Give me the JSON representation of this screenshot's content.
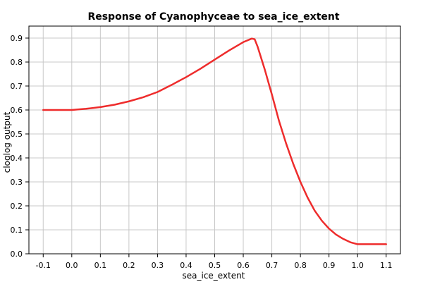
{
  "chart_data": {
    "type": "line",
    "title": "Response of Cyanophyceae to sea_ice_extent",
    "xlabel": "sea_ice_extent",
    "ylabel": "cloglog output",
    "xlim": [
      -0.15,
      1.15
    ],
    "ylim": [
      0.0,
      0.95
    ],
    "x_ticks": [
      -0.1,
      0.0,
      0.1,
      0.2,
      0.3,
      0.4,
      0.5,
      0.6,
      0.7,
      0.8,
      0.9,
      1.0,
      1.1
    ],
    "x_tick_labels": [
      "-0.1",
      "0.0",
      "0.1",
      "0.2",
      "0.3",
      "0.4",
      "0.5",
      "0.6",
      "0.7",
      "0.8",
      "0.9",
      "1.0",
      "1.1"
    ],
    "y_ticks": [
      0.0,
      0.1,
      0.2,
      0.3,
      0.4,
      0.5,
      0.6,
      0.7,
      0.8,
      0.9
    ],
    "y_tick_labels": [
      "0.0",
      "0.1",
      "0.2",
      "0.3",
      "0.4",
      "0.5",
      "0.6",
      "0.7",
      "0.8",
      "0.9"
    ],
    "grid": true,
    "legend": "none",
    "series": [
      {
        "color": "#ee2c2c",
        "x": [
          -0.1,
          -0.05,
          0.0,
          0.05,
          0.1,
          0.15,
          0.2,
          0.25,
          0.3,
          0.35,
          0.4,
          0.45,
          0.5,
          0.55,
          0.6,
          0.63,
          0.64,
          0.65,
          0.675,
          0.7,
          0.725,
          0.75,
          0.775,
          0.8,
          0.825,
          0.85,
          0.875,
          0.9,
          0.925,
          0.95,
          0.975,
          1.0,
          1.05,
          1.1
        ],
        "y": [
          0.6,
          0.6,
          0.6,
          0.605,
          0.612,
          0.622,
          0.636,
          0.653,
          0.675,
          0.705,
          0.737,
          0.772,
          0.81,
          0.848,
          0.883,
          0.898,
          0.895,
          0.865,
          0.77,
          0.665,
          0.555,
          0.46,
          0.375,
          0.3,
          0.235,
          0.18,
          0.138,
          0.105,
          0.08,
          0.062,
          0.048,
          0.04,
          0.04,
          0.04
        ]
      }
    ]
  }
}
